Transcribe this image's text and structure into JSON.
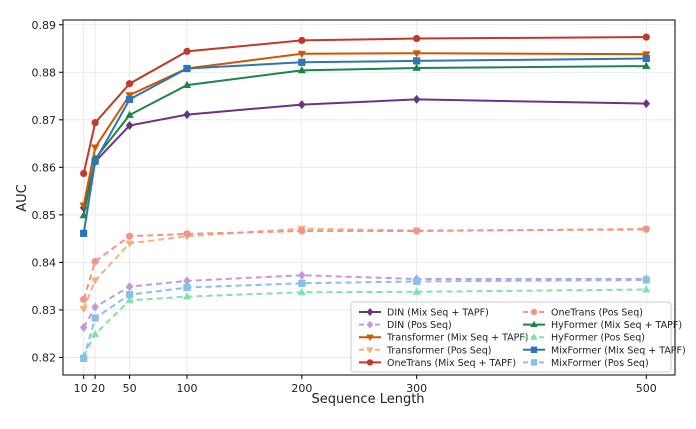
{
  "chart_data": {
    "type": "line",
    "title": "",
    "xlabel": "Sequence Length",
    "ylabel": "AUC",
    "x": [
      10,
      20,
      50,
      100,
      200,
      300,
      500
    ],
    "x_ticks": [
      10,
      20,
      50,
      100,
      200,
      300,
      500
    ],
    "x_tick_labels": [
      "10",
      "20",
      "50",
      "100",
      "200",
      "300",
      "500"
    ],
    "xlim": [
      -8,
      525
    ],
    "ylim": [
      0.8163,
      0.891
    ],
    "y_ticks": [
      0.82,
      0.83,
      0.84,
      0.85,
      0.86,
      0.87,
      0.88,
      0.89
    ],
    "y_tick_labels": [
      "0.82",
      "0.83",
      "0.84",
      "0.85",
      "0.86",
      "0.87",
      "0.88",
      "0.89"
    ],
    "grid": true,
    "legend_placement": "lower-right",
    "series": [
      {
        "name": "DIN (Mix Seq + TAPF)",
        "color": "#6b3480",
        "marker": "diamond",
        "dashed": false,
        "values": [
          0.8515,
          0.8612,
          0.8688,
          0.8711,
          0.8732,
          0.8743,
          0.8734
        ]
      },
      {
        "name": "DIN (Pos Seq)",
        "color": "#c39bd3",
        "marker": "diamond",
        "dashed": true,
        "values": [
          0.8263,
          0.8306,
          0.8349,
          0.8361,
          0.8373,
          0.8365,
          0.8365
        ]
      },
      {
        "name": "Transformer (Mix Seq + TAPF)",
        "color": "#d35400",
        "marker": "triangle-down",
        "dashed": false,
        "values": [
          0.852,
          0.8642,
          0.8752,
          0.8808,
          0.8839,
          0.884,
          0.8838
        ]
      },
      {
        "name": "Transformer (Pos Seq)",
        "color": "#f5b07a",
        "marker": "triangle-down",
        "dashed": true,
        "values": [
          0.8302,
          0.8362,
          0.844,
          0.8455,
          0.8471,
          0.8467,
          0.8469
        ]
      },
      {
        "name": "OneTrans (Mix Seq + TAPF)",
        "color": "#c0392b",
        "marker": "circle",
        "dashed": false,
        "values": [
          0.8587,
          0.8694,
          0.8776,
          0.8844,
          0.8867,
          0.8871,
          0.8874
        ]
      },
      {
        "name": "OneTrans (Pos Seq)",
        "color": "#f1948a",
        "marker": "circle",
        "dashed": true,
        "values": [
          0.8322,
          0.8402,
          0.8455,
          0.846,
          0.8466,
          0.8466,
          0.847
        ]
      },
      {
        "name": "HyFormer (Mix Seq + TAPF)",
        "color": "#1e8449",
        "marker": "triangle-up",
        "dashed": false,
        "values": [
          0.8499,
          0.8618,
          0.871,
          0.8773,
          0.8804,
          0.8809,
          0.8813
        ]
      },
      {
        "name": "HyFormer (Pos Seq)",
        "color": "#82e0aa",
        "marker": "triangle-up",
        "dashed": true,
        "values": [
          0.8203,
          0.8249,
          0.832,
          0.8328,
          0.8337,
          0.8338,
          0.8343
        ]
      },
      {
        "name": "MixFormer (Mix Seq + TAPF)",
        "color": "#2e75b6",
        "marker": "square",
        "dashed": false,
        "values": [
          0.8461,
          0.8613,
          0.8743,
          0.8808,
          0.8821,
          0.8824,
          0.8829
        ]
      },
      {
        "name": "MixFormer (Pos Seq)",
        "color": "#85c1e9",
        "marker": "square",
        "dashed": true,
        "values": [
          0.8198,
          0.8283,
          0.8332,
          0.8347,
          0.8356,
          0.836,
          0.8363
        ]
      }
    ]
  }
}
